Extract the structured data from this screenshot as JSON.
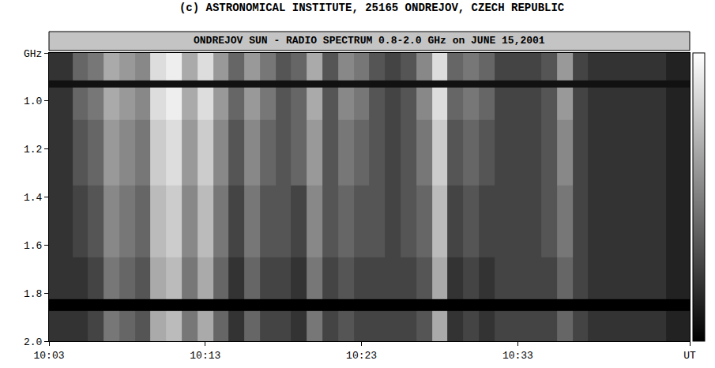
{
  "chart_data": {
    "type": "heatmap",
    "title": "(c) ASTRONOMICAL INSTITUTE, 25165 ONDREJOV, CZECH REPUBLIC",
    "subtitle": "ONDREJOV SUN - RADIO SPECTRUM 0.8-2.0 GHz on JUNE 15,2001",
    "x": [
      "2001-06-15 10:03",
      "2001-06-15 10:04",
      "2001-06-15 10:05",
      "2001-06-15 10:06",
      "2001-06-15 10:07",
      "2001-06-15 10:08",
      "2001-06-15 10:09",
      "2001-06-15 10:10",
      "2001-06-15 10:11",
      "2001-06-15 10:12",
      "2001-06-15 10:13",
      "2001-06-15 10:14",
      "2001-06-15 10:15",
      "2001-06-15 10:16",
      "2001-06-15 10:17",
      "2001-06-15 10:18",
      "2001-06-15 10:19",
      "2001-06-15 10:20",
      "2001-06-15 10:21",
      "2001-06-15 10:22",
      "2001-06-15 10:23",
      "2001-06-15 10:24",
      "2001-06-15 10:25",
      "2001-06-15 10:26",
      "2001-06-15 10:27",
      "2001-06-15 10:28",
      "2001-06-15 10:29",
      "2001-06-15 10:30",
      "2001-06-15 10:31",
      "2001-06-15 10:32",
      "2001-06-15 10:33",
      "2001-06-15 10:34",
      "2001-06-15 10:35",
      "2001-06-15 10:36",
      "2001-06-15 10:37",
      "2001-06-15 10:38",
      "2001-06-15 10:39",
      "2001-06-15 10:40",
      "2001-06-15 10:41",
      "2001-06-15 10:42",
      "2001-06-15 10:43",
      "2001-06-15 10:44"
    ],
    "y": [
      0.8,
      0.9,
      0.93,
      0.96,
      1.2,
      1.5,
      1.8,
      1.85,
      1.9,
      2.0
    ],
    "cells": [
      [
        3,
        3,
        6,
        7,
        10,
        9,
        8,
        13,
        14,
        10,
        13,
        9,
        6,
        9,
        7,
        5,
        6,
        10,
        5,
        8,
        7,
        5,
        4,
        5,
        8,
        13,
        6,
        7,
        6,
        4,
        4,
        4,
        5,
        9,
        4,
        3,
        3,
        3,
        3,
        3,
        2,
        2
      ],
      [
        3,
        3,
        6,
        7,
        10,
        9,
        8,
        13,
        14,
        10,
        13,
        9,
        6,
        9,
        7,
        5,
        6,
        10,
        5,
        8,
        7,
        5,
        4,
        5,
        8,
        13,
        6,
        7,
        6,
        4,
        4,
        4,
        5,
        9,
        4,
        3,
        3,
        3,
        3,
        3,
        2,
        2
      ],
      [
        1,
        1,
        1,
        1,
        1,
        1,
        1,
        1,
        1,
        1,
        1,
        1,
        1,
        1,
        1,
        1,
        1,
        1,
        1,
        1,
        1,
        1,
        1,
        1,
        1,
        1,
        1,
        1,
        1,
        1,
        1,
        1,
        1,
        1,
        1,
        1,
        1,
        1,
        1,
        1,
        1,
        1
      ],
      [
        3,
        3,
        6,
        7,
        10,
        9,
        8,
        13,
        14,
        10,
        13,
        9,
        6,
        9,
        7,
        5,
        6,
        10,
        5,
        8,
        7,
        5,
        4,
        5,
        8,
        13,
        6,
        7,
        6,
        4,
        4,
        4,
        5,
        9,
        4,
        3,
        3,
        3,
        3,
        3,
        2,
        2
      ],
      [
        3,
        3,
        5,
        6,
        9,
        8,
        7,
        12,
        13,
        9,
        12,
        8,
        5,
        8,
        6,
        5,
        6,
        9,
        5,
        7,
        6,
        5,
        4,
        5,
        7,
        12,
        5,
        6,
        5,
        4,
        4,
        4,
        5,
        8,
        4,
        3,
        3,
        3,
        3,
        3,
        2,
        2
      ],
      [
        3,
        3,
        4,
        5,
        8,
        7,
        6,
        11,
        12,
        8,
        11,
        7,
        4,
        7,
        5,
        5,
        4,
        8,
        5,
        6,
        5,
        5,
        4,
        5,
        6,
        11,
        4,
        5,
        4,
        4,
        4,
        4,
        5,
        7,
        4,
        3,
        3,
        3,
        3,
        3,
        2,
        2
      ],
      [
        3,
        3,
        3,
        4,
        7,
        6,
        5,
        10,
        11,
        7,
        10,
        6,
        3,
        6,
        4,
        4,
        3,
        7,
        4,
        5,
        4,
        4,
        4,
        4,
        5,
        10,
        3,
        4,
        3,
        4,
        4,
        4,
        4,
        6,
        4,
        3,
        3,
        3,
        3,
        3,
        2,
        2
      ],
      [
        0,
        0,
        0,
        0,
        0,
        0,
        0,
        0,
        0,
        0,
        0,
        0,
        0,
        0,
        0,
        0,
        0,
        0,
        0,
        0,
        0,
        0,
        0,
        0,
        0,
        0,
        0,
        0,
        0,
        0,
        0,
        0,
        0,
        0,
        0,
        0,
        0,
        0,
        0,
        0,
        0,
        0
      ],
      [
        3,
        3,
        3,
        4,
        7,
        6,
        5,
        10,
        11,
        7,
        10,
        6,
        3,
        6,
        4,
        4,
        3,
        7,
        4,
        5,
        4,
        4,
        4,
        4,
        5,
        10,
        3,
        4,
        3,
        4,
        4,
        4,
        4,
        6,
        4,
        3,
        3,
        3,
        3,
        3,
        2,
        2
      ],
      [
        3,
        3,
        3,
        4,
        7,
        6,
        5,
        10,
        11,
        7,
        10,
        6,
        3,
        6,
        4,
        4,
        3,
        7,
        4,
        5,
        4,
        4,
        4,
        4,
        5,
        10,
        3,
        4,
        3,
        4,
        4,
        4,
        4,
        6,
        4,
        3,
        3,
        3,
        3,
        3,
        2,
        2
      ]
    ],
    "zlim": [
      0,
      15
    ],
    "xlim": [
      "2001-06-15 10:03",
      "2001-06-15 10:44"
    ],
    "xticks": [
      {
        "value": "2001-06-15 10:03",
        "label": "10:03"
      },
      {
        "value": "2001-06-15 10:13",
        "label": "10:13"
      },
      {
        "value": "2001-06-15 10:23",
        "label": "10:23"
      },
      {
        "value": "2001-06-15 10:33",
        "label": "10:33"
      },
      {
        "value": "2001-06-15 10:44",
        "label": "UT"
      }
    ],
    "ylim": [
      2.0,
      0.8
    ],
    "yticks": [
      {
        "value": 0.8,
        "label": "GHz"
      },
      {
        "value": 1,
        "label": "1.0"
      },
      1.2,
      1.4,
      1.6,
      1.8,
      {
        "value": 2,
        "label": "2.0"
      }
    ],
    "grid": false
  }
}
